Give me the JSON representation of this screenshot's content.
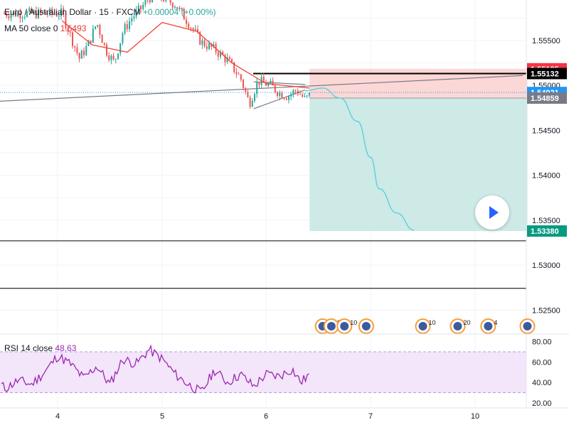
{
  "header": {
    "symbol": "Euro / Australian Dollar",
    "interval": "15",
    "exchange": "FXCM",
    "change": "+0.00004 (+0.00%)"
  },
  "ma_indicator": {
    "label": "MA 50 close 0",
    "value": "1.5493"
  },
  "rsi_indicator": {
    "label": "RSI 14 close",
    "value": "48.63"
  },
  "colors": {
    "up": "#26a69a",
    "down": "#ef5350",
    "ma": "#f44336",
    "rsi": "#9c27b0",
    "stop_zone": "#fbd7d6",
    "target_zone": "#cdeae6",
    "path": "#5ad1dc"
  },
  "chart_data": [
    {
      "type": "candlestick",
      "title": "Euro / Australian Dollar · 15 · FXCM",
      "xlabel": "",
      "ylabel": "",
      "ylim": [
        1.5225,
        1.5595
      ],
      "x_ticks": [
        "4",
        "5",
        "6",
        "7",
        "10"
      ],
      "y_ticks": [
        1.555,
        1.55,
        1.545,
        1.54,
        1.535,
        1.53,
        1.525
      ],
      "grid": true,
      "price_path": [
        [
          "4-01:00",
          1.558
        ],
        [
          "4-03:00",
          1.5555
        ],
        [
          "4-05:00",
          1.553
        ],
        [
          "4-07:00",
          1.5545
        ],
        [
          "4-09:00",
          1.557
        ],
        [
          "4-11:00",
          1.554
        ],
        [
          "4-13:00",
          1.5525
        ],
        [
          "4-15:00",
          1.556
        ],
        [
          "4-17:00",
          1.5575
        ],
        [
          "4-19:00",
          1.5585
        ],
        [
          "4-21:00",
          1.5598
        ],
        [
          "5-00:00",
          1.5598
        ],
        [
          "5-03:00",
          1.559
        ],
        [
          "5-06:00",
          1.557
        ],
        [
          "5-09:00",
          1.5548
        ],
        [
          "5-12:00",
          1.554
        ],
        [
          "5-15:00",
          1.5528
        ],
        [
          "5-18:00",
          1.5508
        ],
        [
          "5-20:00",
          1.548
        ],
        [
          "5-22:00",
          1.5505
        ],
        [
          "6-01:00",
          1.55
        ],
        [
          "6-03:00",
          1.5492
        ],
        [
          "6-05:00",
          1.5488
        ],
        [
          "6-07:00",
          1.5495
        ],
        [
          "6-09:00",
          1.5484
        ],
        [
          "6-10:00",
          1.5489
        ]
      ],
      "moving_average_50": [
        [
          "4-01:00",
          1.5572
        ],
        [
          "4-08:00",
          1.5545
        ],
        [
          "4-16:00",
          1.5537
        ],
        [
          "5-00:00",
          1.557
        ],
        [
          "5-08:00",
          1.556
        ],
        [
          "5-16:00",
          1.5525
        ],
        [
          "6-00:00",
          1.5502
        ],
        [
          "6-10:00",
          1.5497
        ]
      ],
      "horizontal_lines": [
        1.55132,
        1.53271,
        1.52742
      ],
      "trend_lines": [
        {
          "from": [
            "3-09:00",
            1.5482
          ],
          "to": [
            "10-11:00",
            1.5511
          ]
        },
        {
          "from": [
            "5-21:00",
            1.5504
          ],
          "to": [
            "6-09:00",
            1.5501
          ]
        },
        {
          "from": [
            "5-21:00",
            1.5474
          ],
          "to": [
            "6-09:00",
            1.5495
          ]
        }
      ],
      "position": {
        "side": "short",
        "entry": 1.54859,
        "stop": 1.55185,
        "target": 1.5338,
        "start": "6-10:00",
        "end": "10-12:00"
      },
      "projection": [
        [
          "6-09:00",
          1.5494
        ],
        [
          "6-13:00",
          1.5497
        ],
        [
          "6-17:00",
          1.5486
        ],
        [
          "6-21:00",
          1.546
        ],
        [
          "7-00:00",
          1.542
        ],
        [
          "7-02:00",
          1.5385
        ],
        [
          "7-06:00",
          1.5358
        ],
        [
          "7-10:00",
          1.5339
        ]
      ],
      "price_labels": [
        {
          "text": "1.55185",
          "value": 1.55185,
          "color": "#f23645"
        },
        {
          "text": "1.55132",
          "value": 1.55132,
          "color": "#000000"
        },
        {
          "text": "1.54921",
          "value": 1.54921,
          "color": "#2196f3"
        },
        {
          "text": "1.54859",
          "value": 1.54859,
          "color": "#787b86"
        },
        {
          "text": "1.53380",
          "value": 1.5338,
          "color": "#089981"
        }
      ],
      "events": [
        {
          "time": "6-13:00",
          "label": ""
        },
        {
          "time": "6-15:00",
          "label": "2"
        },
        {
          "time": "6-18:00",
          "label": "10"
        },
        {
          "time": "6-23:00",
          "label": ""
        },
        {
          "time": "7-12:00",
          "label": "10"
        },
        {
          "time": "7-20:00",
          "label": "20"
        },
        {
          "time": "10-03:00",
          "label": "4"
        },
        {
          "time": "10-12:00",
          "label": ""
        }
      ]
    },
    {
      "type": "line",
      "title": "RSI 14 close",
      "ylim": [
        15,
        86
      ],
      "y_ticks": [
        80,
        60,
        40,
        20
      ],
      "y_tick_labels": [
        "80.00",
        "60.00",
        "40.00",
        "20.00"
      ],
      "band": [
        70,
        30
      ],
      "last_value": 48.63,
      "path": [
        [
          "3-09:00",
          45
        ],
        [
          "3-12:00",
          34
        ],
        [
          "3-15:00",
          42
        ],
        [
          "3-18:00",
          38
        ],
        [
          "3-21:00",
          50
        ],
        [
          "4-00:00",
          66
        ],
        [
          "4-03:00",
          58
        ],
        [
          "4-06:00",
          44
        ],
        [
          "4-09:00",
          56
        ],
        [
          "4-12:00",
          38
        ],
        [
          "4-15:00",
          63
        ],
        [
          "4-18:00",
          58
        ],
        [
          "4-21:00",
          72
        ],
        [
          "5-00:00",
          63
        ],
        [
          "5-03:00",
          48
        ],
        [
          "5-06:00",
          38
        ],
        [
          "5-09:00",
          30
        ],
        [
          "5-12:00",
          52
        ],
        [
          "5-15:00",
          40
        ],
        [
          "5-18:00",
          48
        ],
        [
          "5-21:00",
          36
        ],
        [
          "6-00:00",
          48
        ],
        [
          "6-03:00",
          46
        ],
        [
          "6-06:00",
          53
        ],
        [
          "6-08:00",
          40
        ],
        [
          "6-10:00",
          48
        ]
      ]
    }
  ]
}
